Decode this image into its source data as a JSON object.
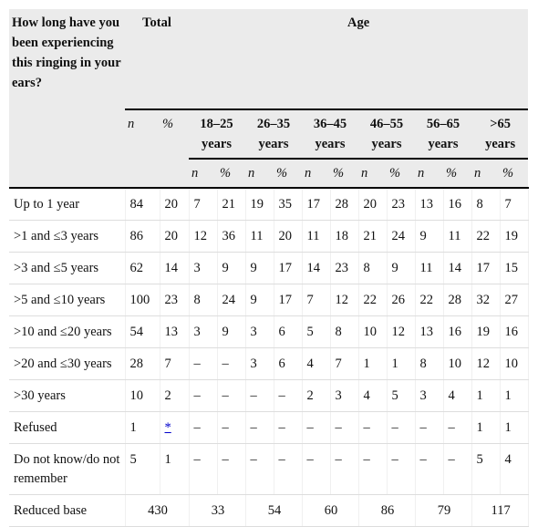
{
  "header": {
    "question": "How long have you been experiencing this ringing in your ears?",
    "total": "Total",
    "age": "Age",
    "total_sub": [
      "n",
      "%"
    ],
    "age_groups": [
      "18–25 years",
      "26–35 years",
      "36–45 years",
      "46–55 years",
      "56–65 years",
      ">65 years"
    ],
    "age_sub": [
      [
        "n",
        "%"
      ],
      [
        "n",
        "%"
      ],
      [
        "n",
        "%"
      ],
      [
        "n",
        "%"
      ],
      [
        "n",
        "%"
      ],
      [
        "n",
        "%"
      ]
    ]
  },
  "table": {
    "rows": [
      [
        "Up to 1 year",
        "84",
        "20",
        "7",
        "21",
        "19",
        "35",
        "17",
        "28",
        "20",
        "23",
        "13",
        "16",
        "8",
        "7"
      ],
      [
        ">1 and ≤3 years",
        "86",
        "20",
        "12",
        "36",
        "11",
        "20",
        "11",
        "18",
        "21",
        "24",
        "9",
        "11",
        "22",
        "19"
      ],
      [
        ">3 and ≤5 years",
        "62",
        "14",
        "3",
        "9",
        "9",
        "17",
        "14",
        "23",
        "8",
        "9",
        "11",
        "14",
        "17",
        "15"
      ],
      [
        ">5 and ≤10 years",
        "100",
        "23",
        "8",
        "24",
        "9",
        "17",
        "7",
        "12",
        "22",
        "26",
        "22",
        "28",
        "32",
        "27"
      ],
      [
        ">10 and ≤20 years",
        "54",
        "13",
        "3",
        "9",
        "3",
        "6",
        "5",
        "8",
        "10",
        "12",
        "13",
        "16",
        "19",
        "16"
      ],
      [
        ">20 and ≤30 years",
        "28",
        "7",
        "–",
        "–",
        "3",
        "6",
        "4",
        "7",
        "1",
        "1",
        "8",
        "10",
        "12",
        "10"
      ],
      [
        ">30 years",
        "10",
        "2",
        "–",
        "–",
        "–",
        "–",
        "2",
        "3",
        "4",
        "5",
        "3",
        "4",
        "1",
        "1"
      ],
      [
        "Refused",
        "1",
        "*",
        "–",
        "–",
        "–",
        "–",
        "–",
        "–",
        "–",
        "–",
        "–",
        "–",
        "1",
        "1"
      ],
      [
        "Do not know/do not remember",
        "5",
        "1",
        "–",
        "–",
        "–",
        "–",
        "–",
        "–",
        "–",
        "–",
        "–",
        "–",
        "5",
        "4"
      ]
    ],
    "base": [
      "Reduced base",
      "430",
      "33",
      "54",
      "60",
      "86",
      "79",
      "117"
    ]
  }
}
